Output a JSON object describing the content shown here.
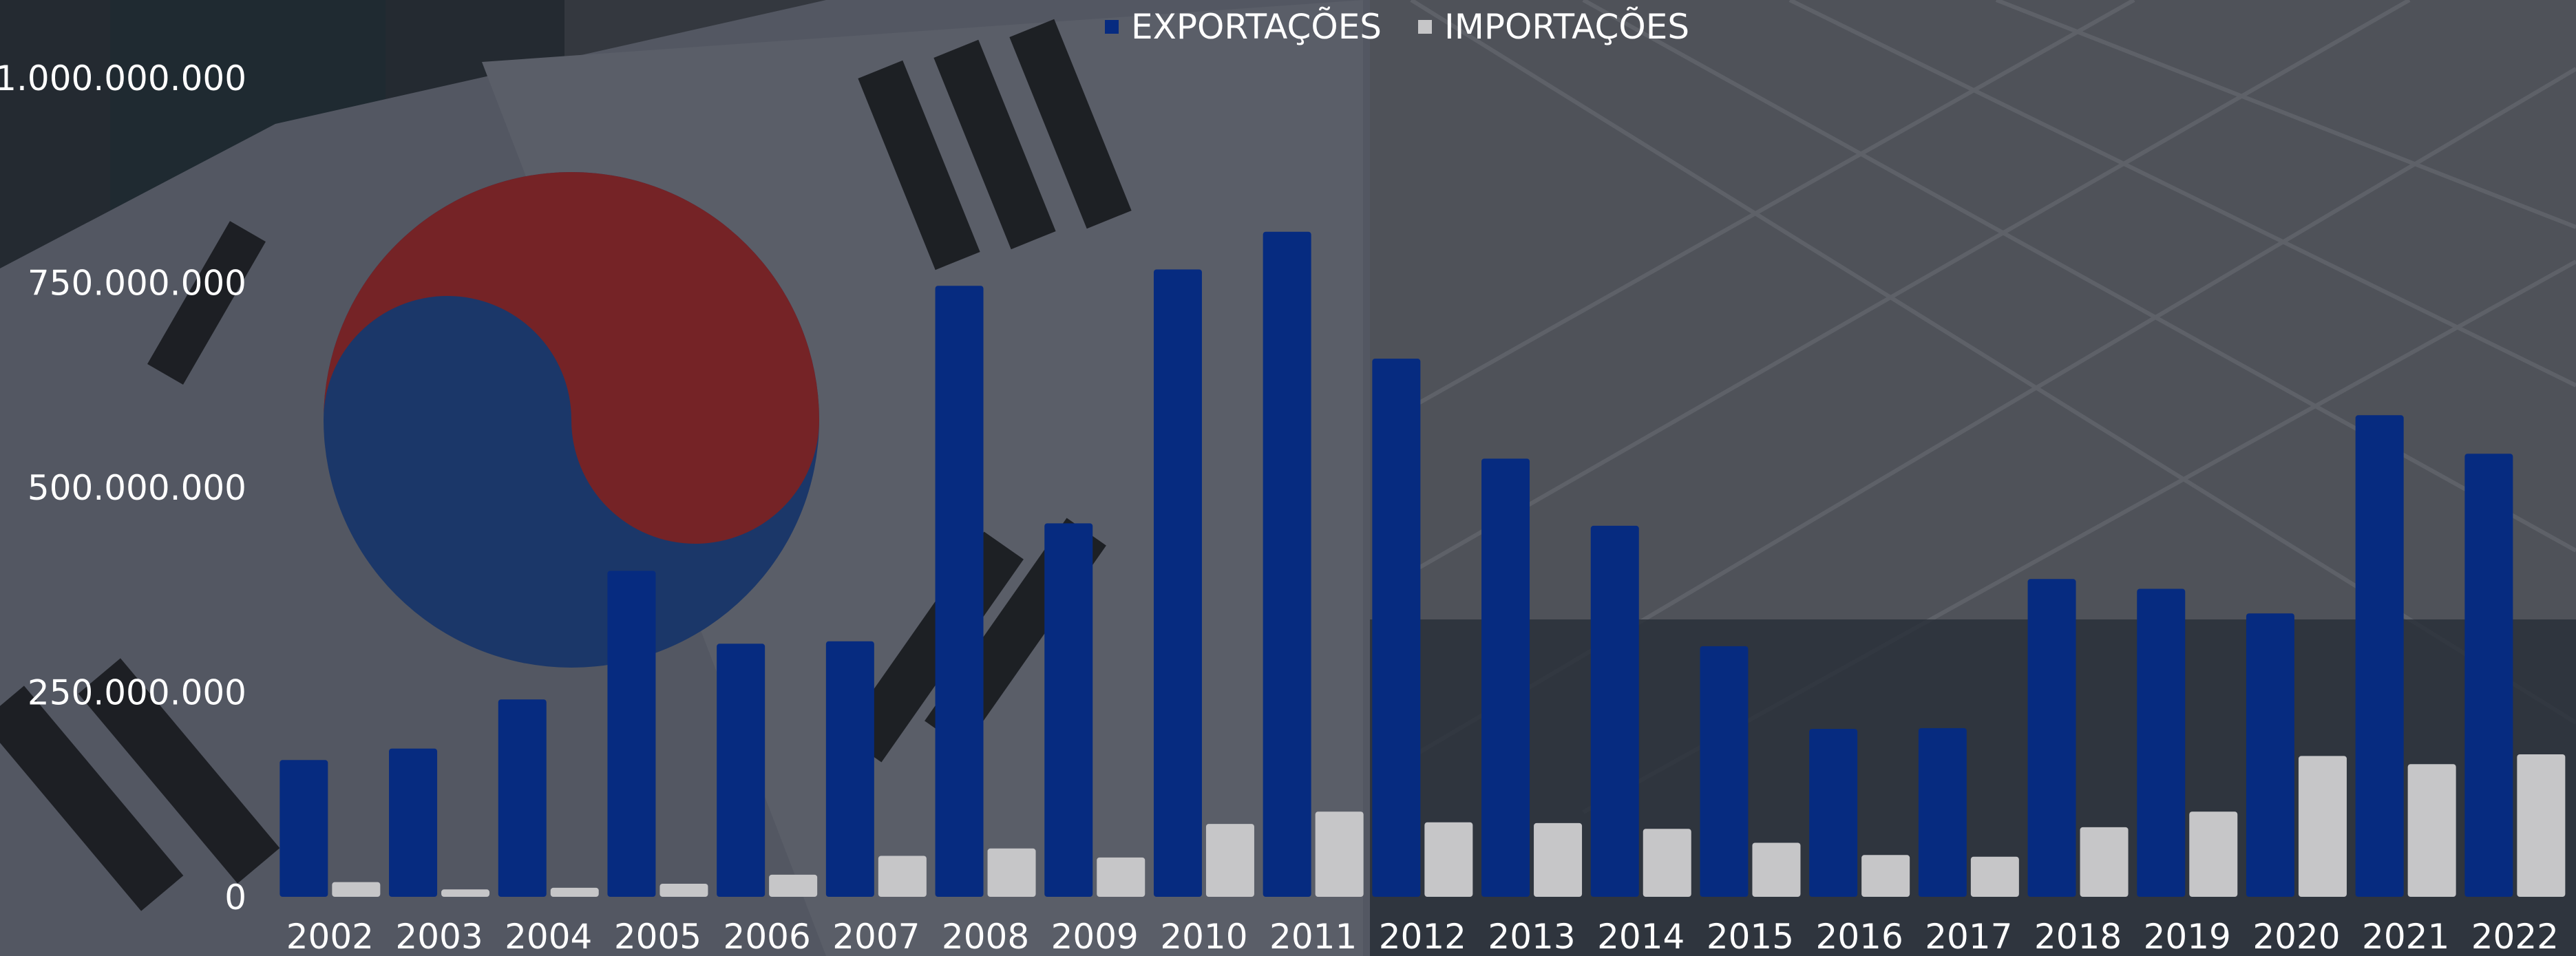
{
  "chart_data": {
    "type": "bar",
    "title": "",
    "xlabel": "",
    "ylabel": "",
    "ylim": [
      0,
      1000000000
    ],
    "yticks": [
      0,
      250000000,
      500000000,
      750000000,
      1000000000
    ],
    "ytick_labels": [
      "0",
      "250.000.000",
      "500.000.000",
      "750.000.000",
      "1.000.000.000"
    ],
    "categories": [
      "2002",
      "2003",
      "2004",
      "2005",
      "2006",
      "2007",
      "2008",
      "2009",
      "2010",
      "2011",
      "2012",
      "2013",
      "2014",
      "2015",
      "2016",
      "2017",
      "2018",
      "2019",
      "2020",
      "2021",
      "2022"
    ],
    "series": [
      {
        "name": "EXPORTAÇÕES",
        "color": "#062b80",
        "values": [
          167000000,
          181000000,
          241000000,
          398000000,
          309000000,
          312000000,
          746000000,
          456000000,
          766000000,
          812000000,
          657000000,
          535000000,
          453000000,
          306000000,
          205000000,
          206000000,
          388000000,
          376000000,
          346000000,
          588000000,
          541000000
        ]
      },
      {
        "name": "IMPORTAÇÕES",
        "color": "#c6c6c8",
        "values": [
          18000000,
          9000000,
          11000000,
          16000000,
          27000000,
          50000000,
          59000000,
          48000000,
          89000000,
          104000000,
          91000000,
          90000000,
          83000000,
          66000000,
          51000000,
          49000000,
          85000000,
          104000000,
          172000000,
          162000000,
          174000000
        ]
      }
    ],
    "legend": "top-center",
    "grid": false
  }
}
